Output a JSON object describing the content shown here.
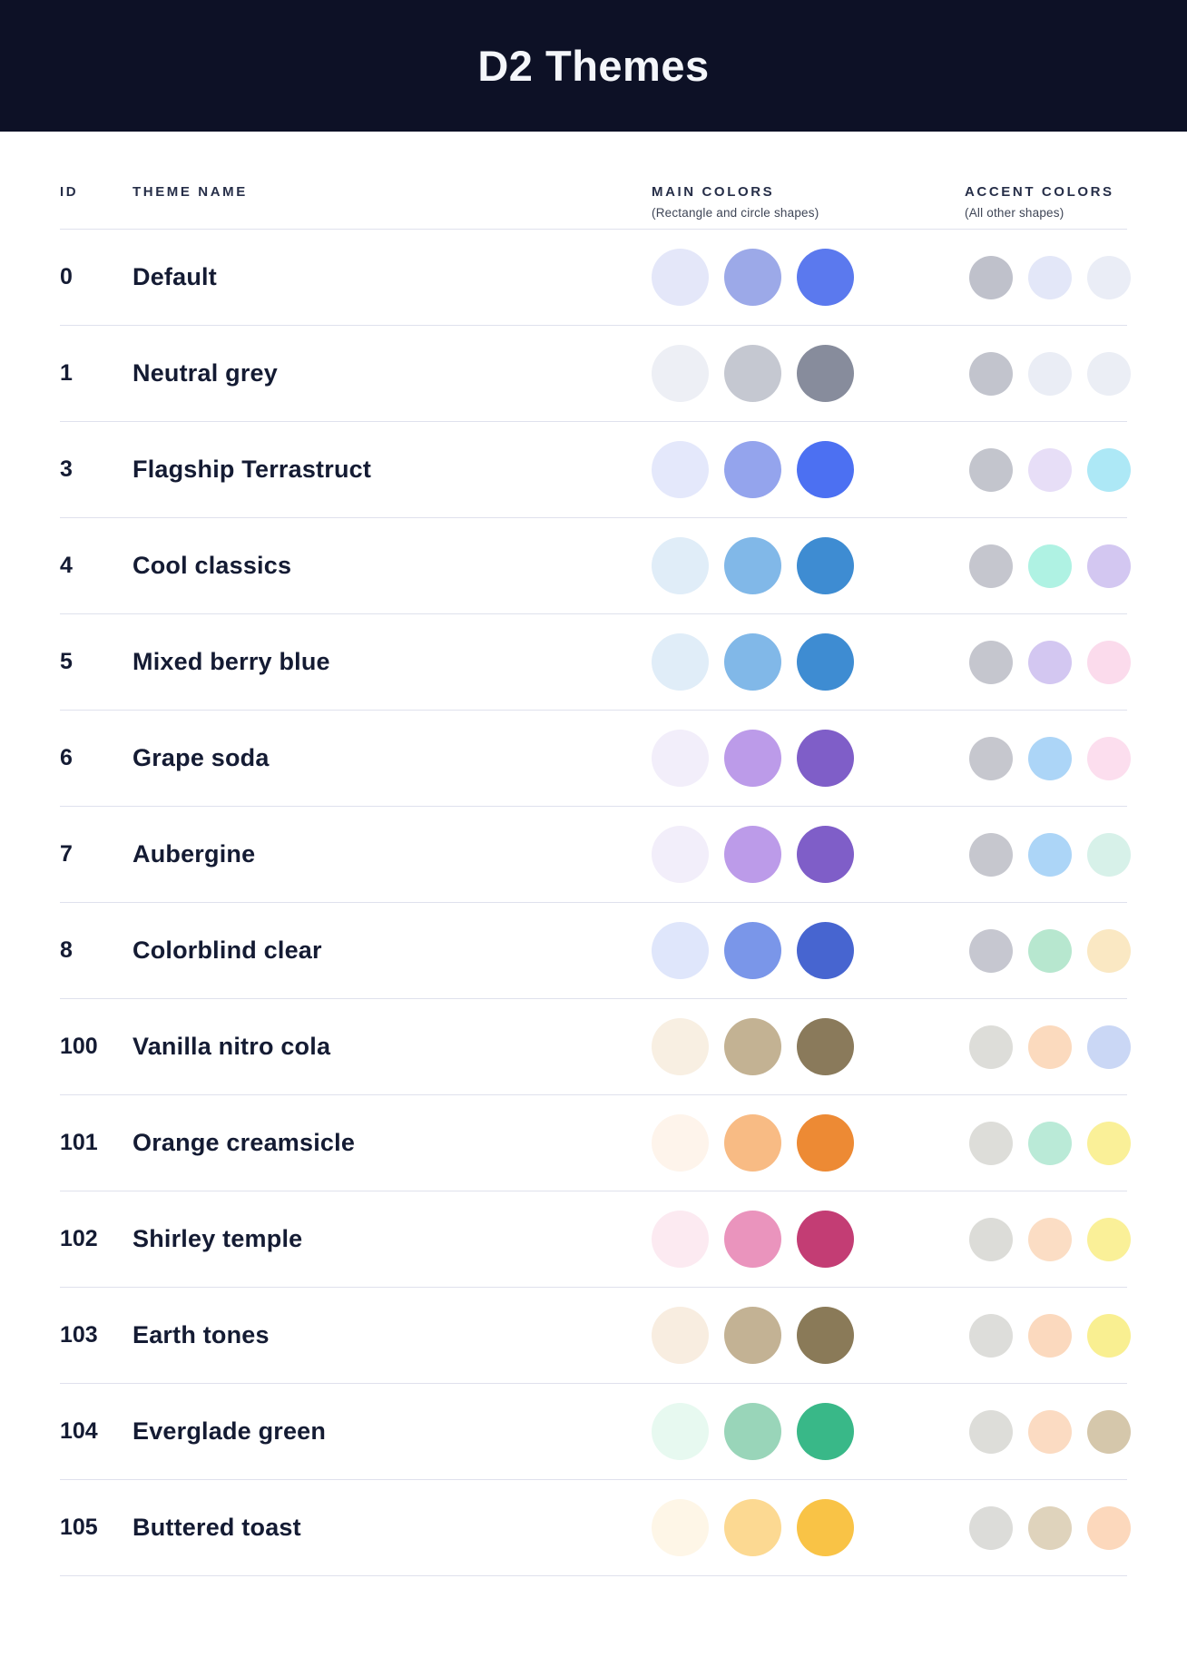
{
  "header": {
    "title": "D2 Themes"
  },
  "colors": {
    "banner_bg": "#0D1126",
    "banner_text": "#F4F6FA",
    "divider": "#DFE1ED",
    "heading_text": "#262E48",
    "body_text": "#141B33"
  },
  "table": {
    "columns": {
      "id": "ID",
      "theme_name": "THEME NAME",
      "main_colors": "MAIN COLORS",
      "main_colors_sub": "(Rectangle and circle shapes)",
      "accent_colors": "ACCENT COLORS",
      "accent_colors_sub": "(All other shapes)"
    },
    "rows": [
      {
        "id": "0",
        "name": "Default",
        "main": [
          "#E4E7F9",
          "#9CA9E8",
          "#5B79EE"
        ],
        "accent": [
          "#BFC1CB",
          "#E3E7F8",
          "#EAEDF6"
        ]
      },
      {
        "id": "1",
        "name": "Neutral grey",
        "main": [
          "#EDEFF5",
          "#C5C8D1",
          "#878C9C"
        ],
        "accent": [
          "#C2C4CD",
          "#EAEDF5",
          "#EBEEF5"
        ]
      },
      {
        "id": "3",
        "name": "Flagship Terrastruct",
        "main": [
          "#E4E8FB",
          "#94A4ED",
          "#4C70F2"
        ],
        "accent": [
          "#C3C5CD",
          "#E7DEF7",
          "#ADE8F6"
        ]
      },
      {
        "id": "4",
        "name": "Cool classics",
        "main": [
          "#E0EDF8",
          "#81B8E8",
          "#3E8CD2"
        ],
        "accent": [
          "#C5C6CE",
          "#AFF2E3",
          "#D3C7F1"
        ]
      },
      {
        "id": "5",
        "name": "Mixed berry blue",
        "main": [
          "#E0EDF8",
          "#81B8E8",
          "#3E8CD2"
        ],
        "accent": [
          "#C5C6CE",
          "#D3C7F1",
          "#FBDBEC"
        ]
      },
      {
        "id": "6",
        "name": "Grape soda",
        "main": [
          "#F2EEFA",
          "#BC9BE9",
          "#7F5EC8"
        ],
        "accent": [
          "#C6C7CE",
          "#ACD5F7",
          "#FCDEEE"
        ]
      },
      {
        "id": "7",
        "name": "Aubergine",
        "main": [
          "#F2EEFA",
          "#BC9BE9",
          "#7F5EC8"
        ],
        "accent": [
          "#C6C7CE",
          "#ACD5F7",
          "#D7F1E9"
        ]
      },
      {
        "id": "8",
        "name": "Colorblind clear",
        "main": [
          "#DFE6FB",
          "#7A96E9",
          "#4765D0"
        ],
        "accent": [
          "#C6C7D0",
          "#B7E7CF",
          "#FAE8C3"
        ]
      },
      {
        "id": "100",
        "name": "Vanilla nitro cola",
        "main": [
          "#F8EFE2",
          "#C3B293",
          "#8A7A5B"
        ],
        "accent": [
          "#DDDDD9",
          "#FBDABE",
          "#CAD7F5"
        ]
      },
      {
        "id": "101",
        "name": "Orange creamsicle",
        "main": [
          "#FEF4EB",
          "#F8BB84",
          "#ED8A34"
        ],
        "accent": [
          "#DDDDD9",
          "#BAEAD7",
          "#FAF098"
        ]
      },
      {
        "id": "102",
        "name": "Shirley temple",
        "main": [
          "#FCEAF1",
          "#EA94BD",
          "#C33D74"
        ],
        "accent": [
          "#DCDCD8",
          "#FBDDC4",
          "#FAF098"
        ]
      },
      {
        "id": "103",
        "name": "Earth tones",
        "main": [
          "#F8EDE0",
          "#C3B294",
          "#8A7A58"
        ],
        "accent": [
          "#DDDDDA",
          "#FBD9BE",
          "#F9EF91"
        ]
      },
      {
        "id": "104",
        "name": "Everglade green",
        "main": [
          "#E7F9F0",
          "#99D5B9",
          "#39B888"
        ],
        "accent": [
          "#DDDDD9",
          "#FBDBC2",
          "#D5C7AB"
        ]
      },
      {
        "id": "105",
        "name": "Buttered toast",
        "main": [
          "#FEF6E7",
          "#FCD992",
          "#F9C346"
        ],
        "accent": [
          "#DCDCD9",
          "#DFD3BC",
          "#FCD8BC"
        ]
      }
    ]
  }
}
